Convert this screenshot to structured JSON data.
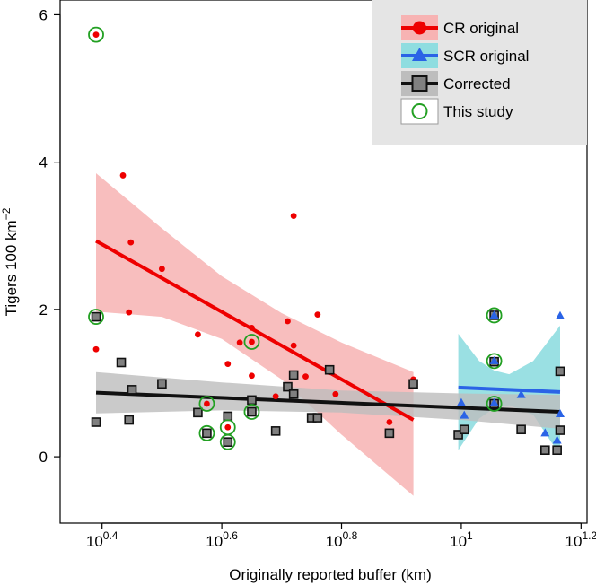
{
  "chart_data": {
    "type": "scatter",
    "xlabel": "Originally reported buffer (km)",
    "ylabel_main": "Tigers 100 km",
    "ylabel_sup": "−2",
    "xscale": "log10",
    "xlim_log10": [
      0.33,
      1.21
    ],
    "ylim": [
      -0.9,
      6.2
    ],
    "x_ticks": [
      {
        "log10": 0.4,
        "base": "10",
        "sup": "0.4"
      },
      {
        "log10": 0.6,
        "base": "10",
        "sup": "0.6"
      },
      {
        "log10": 0.8,
        "base": "10",
        "sup": "0.8"
      },
      {
        "log10": 1.0,
        "base": "10",
        "sup": "1"
      },
      {
        "log10": 1.2,
        "base": "10",
        "sup": "1.2"
      }
    ],
    "y_ticks": [
      0,
      2,
      4,
      6
    ],
    "legend": {
      "position": "top-right",
      "entries": [
        {
          "label": "CR original",
          "kind": "cr"
        },
        {
          "label": "SCR original",
          "kind": "scr"
        },
        {
          "label": "Corrected",
          "kind": "corrected"
        },
        {
          "label": "This study",
          "kind": "study"
        }
      ]
    },
    "colors": {
      "cr": "#ee0000",
      "cr_band": "#f7b3b3",
      "scr": "#2a63e6",
      "scr_band": "#8fdde0",
      "corrected_fill": "#808080",
      "corrected_band": "#bdbdbd",
      "corrected_line": "#111111",
      "study": "#22a022",
      "legend_bg": "#e5e5e5"
    },
    "series": [
      {
        "name": "CR original",
        "marker": "circle",
        "points": [
          [
            0.39,
            5.73
          ],
          [
            0.39,
            1.9
          ],
          [
            0.39,
            1.46
          ],
          [
            0.435,
            3.82
          ],
          [
            0.445,
            1.96
          ],
          [
            0.448,
            2.91
          ],
          [
            0.5,
            2.55
          ],
          [
            0.56,
            1.66
          ],
          [
            0.575,
            0.72
          ],
          [
            0.61,
            1.26
          ],
          [
            0.61,
            0.4
          ],
          [
            0.63,
            1.55
          ],
          [
            0.65,
            1.75
          ],
          [
            0.65,
            1.56
          ],
          [
            0.65,
            1.1
          ],
          [
            0.69,
            0.82
          ],
          [
            0.71,
            1.84
          ],
          [
            0.72,
            3.27
          ],
          [
            0.72,
            1.51
          ],
          [
            0.74,
            1.09
          ],
          [
            0.76,
            1.93
          ],
          [
            0.78,
            1.15
          ],
          [
            0.79,
            0.85
          ],
          [
            0.88,
            0.47
          ],
          [
            0.92,
            1.05
          ]
        ]
      },
      {
        "name": "SCR original",
        "marker": "triangle",
        "points": [
          [
            1.0,
            0.73
          ],
          [
            1.005,
            0.56
          ],
          [
            1.055,
            1.92
          ],
          [
            1.055,
            1.3
          ],
          [
            1.055,
            0.73
          ],
          [
            1.1,
            0.84
          ],
          [
            1.14,
            0.32
          ],
          [
            1.16,
            0.22
          ],
          [
            1.165,
            1.91
          ],
          [
            1.165,
            0.58
          ]
        ]
      },
      {
        "name": "Corrected",
        "marker": "square",
        "points": [
          [
            0.39,
            1.9
          ],
          [
            0.39,
            0.47
          ],
          [
            0.432,
            1.28
          ],
          [
            0.445,
            0.5
          ],
          [
            0.45,
            0.91
          ],
          [
            0.5,
            0.99
          ],
          [
            0.56,
            0.6
          ],
          [
            0.575,
            0.32
          ],
          [
            0.61,
            0.55
          ],
          [
            0.61,
            0.2
          ],
          [
            0.65,
            0.77
          ],
          [
            0.65,
            0.61
          ],
          [
            0.69,
            0.35
          ],
          [
            0.71,
            0.95
          ],
          [
            0.72,
            1.11
          ],
          [
            0.72,
            0.85
          ],
          [
            0.75,
            0.53
          ],
          [
            0.76,
            0.53
          ],
          [
            0.78,
            1.18
          ],
          [
            0.88,
            0.32
          ],
          [
            0.92,
            0.99
          ],
          [
            0.995,
            0.3
          ],
          [
            1.005,
            0.37
          ],
          [
            1.055,
            1.92
          ],
          [
            1.055,
            1.29
          ],
          [
            1.055,
            0.72
          ],
          [
            1.1,
            0.37
          ],
          [
            1.14,
            0.09
          ],
          [
            1.16,
            0.09
          ],
          [
            1.165,
            1.16
          ],
          [
            1.165,
            0.36
          ]
        ]
      },
      {
        "name": "This study",
        "marker": "open-circle",
        "points": [
          [
            0.39,
            5.73
          ],
          [
            0.39,
            1.9
          ],
          [
            0.575,
            0.72
          ],
          [
            0.575,
            0.32
          ],
          [
            0.61,
            0.4
          ],
          [
            0.61,
            0.2
          ],
          [
            0.65,
            1.56
          ],
          [
            0.65,
            0.61
          ],
          [
            1.055,
            1.92
          ],
          [
            1.055,
            1.3
          ],
          [
            1.055,
            0.72
          ]
        ]
      }
    ],
    "fits": [
      {
        "name": "CR original",
        "line": [
          [
            0.39,
            2.93
          ],
          [
            0.92,
            0.5
          ]
        ],
        "band": {
          "x": [
            0.39,
            0.5,
            0.6,
            0.7,
            0.8,
            0.92
          ],
          "upper": [
            3.85,
            3.1,
            2.45,
            1.95,
            1.55,
            1.15
          ],
          "lower": [
            1.97,
            1.9,
            1.6,
            1.05,
            0.3,
            -0.53
          ]
        }
      },
      {
        "name": "SCR original",
        "line": [
          [
            0.995,
            0.94
          ],
          [
            1.165,
            0.88
          ]
        ],
        "band": {
          "x": [
            0.995,
            1.03,
            1.055,
            1.08,
            1.12,
            1.165
          ],
          "upper": [
            1.67,
            1.3,
            1.17,
            1.12,
            1.3,
            1.78
          ],
          "lower": [
            0.09,
            0.52,
            0.66,
            0.7,
            0.57,
            0.02
          ]
        }
      },
      {
        "name": "Corrected",
        "line": [
          [
            0.39,
            0.87
          ],
          [
            1.165,
            0.61
          ]
        ],
        "band": {
          "x": [
            0.39,
            0.6,
            0.8,
            1.0,
            1.165
          ],
          "upper": [
            1.15,
            1.01,
            0.9,
            0.86,
            0.84
          ],
          "lower": [
            0.59,
            0.63,
            0.6,
            0.5,
            0.38
          ]
        }
      }
    ]
  }
}
